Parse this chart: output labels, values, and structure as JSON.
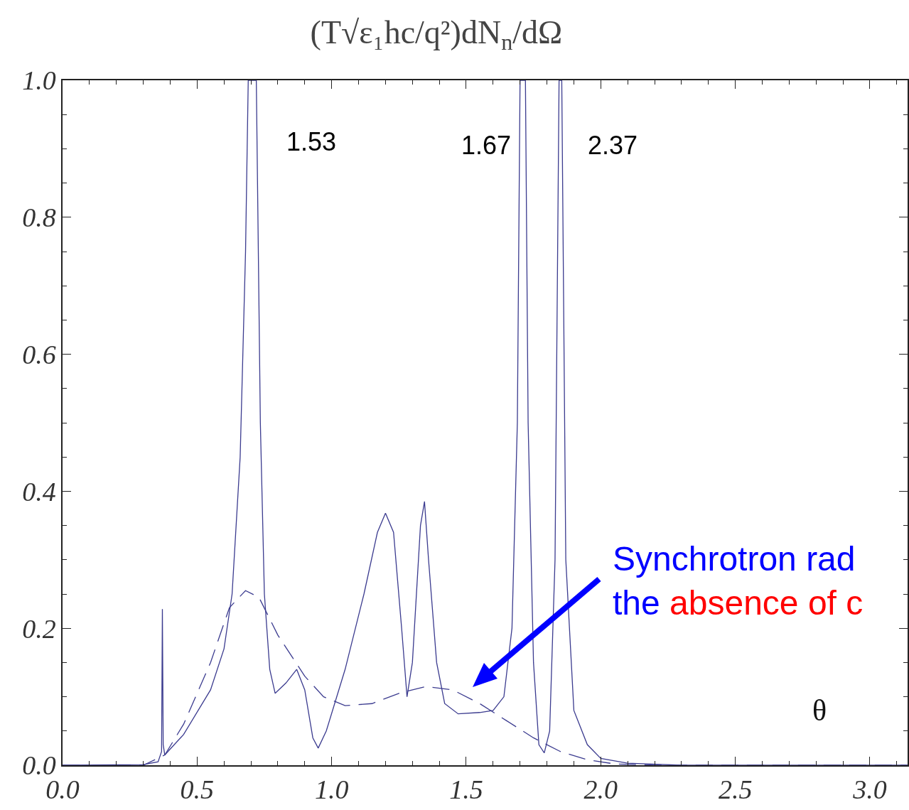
{
  "chart_data": {
    "type": "line",
    "title": "(T√ε₁hc/q²)dN$_{n}$/dΩ",
    "xlabel": "θ",
    "xlim": [
      0,
      3.14
    ],
    "ylim": [
      0,
      1
    ],
    "xticks": [
      {
        "value": 0,
        "label": "0.0"
      },
      {
        "value": 0.5,
        "label": "0.5"
      },
      {
        "value": 1,
        "label": "1.0"
      },
      {
        "value": 1.5,
        "label": "1.5"
      },
      {
        "value": 2,
        "label": "2.0"
      },
      {
        "value": 2.5,
        "label": "2.5"
      },
      {
        "value": 3,
        "label": "3.0"
      }
    ],
    "yticks": [
      {
        "value": 0,
        "label": "0.0"
      },
      {
        "value": 0.2,
        "label": "0.2"
      },
      {
        "value": 0.4,
        "label": "0.4"
      },
      {
        "value": 0.6,
        "label": "0.6"
      },
      {
        "value": 0.8,
        "label": "0.8"
      },
      {
        "value": 1,
        "label": "1.0"
      }
    ],
    "marker": "none",
    "series": [
      {
        "color": "#3b3b8f",
        "line_style": "solid",
        "x": [
          0,
          0.3,
          0.355,
          0.368,
          0.371,
          0.374,
          0.38,
          0.45,
          0.55,
          0.6,
          0.63,
          0.66,
          0.68,
          0.69,
          0.72,
          0.735,
          0.75,
          0.77,
          0.79,
          0.83,
          0.87,
          0.9,
          0.93,
          0.95,
          0.98,
          1.05,
          1.12,
          1.17,
          1.2,
          1.23,
          1.26,
          1.28,
          1.3,
          1.33,
          1.345,
          1.36,
          1.39,
          1.42,
          1.47,
          1.55,
          1.6,
          1.64,
          1.67,
          1.69,
          1.7,
          1.72,
          1.73,
          1.75,
          1.77,
          1.79,
          1.81,
          1.83,
          1.845,
          1.855,
          1.87,
          1.9,
          1.95,
          2,
          2.1,
          2.3,
          3.14
        ],
        "values": [
          0,
          0.001,
          0.005,
          0.02,
          0.228,
          0.03,
          0.015,
          0.045,
          0.11,
          0.17,
          0.25,
          0.45,
          0.75,
          1,
          1,
          0.5,
          0.25,
          0.14,
          0.105,
          0.12,
          0.14,
          0.11,
          0.04,
          0.025,
          0.05,
          0.14,
          0.25,
          0.34,
          0.368,
          0.34,
          0.2,
          0.1,
          0.15,
          0.35,
          0.385,
          0.3,
          0.15,
          0.09,
          0.075,
          0.077,
          0.08,
          0.1,
          0.2,
          0.5,
          1,
          1,
          0.5,
          0.15,
          0.03,
          0.018,
          0.05,
          0.3,
          1,
          1,
          0.3,
          0.08,
          0.03,
          0.01,
          0.003,
          0,
          0
        ]
      },
      {
        "color": "#3b3b8f",
        "line_style": "dashed",
        "x": [
          0,
          0.3,
          0.38,
          0.45,
          0.55,
          0.62,
          0.68,
          0.73,
          0.8,
          0.9,
          0.97,
          1.05,
          1.15,
          1.25,
          1.35,
          1.45,
          1.55,
          1.65,
          1.75,
          1.85,
          1.95,
          2.05,
          2.2,
          3.14
        ],
        "values": [
          0,
          0,
          0.015,
          0.06,
          0.15,
          0.23,
          0.255,
          0.245,
          0.19,
          0.13,
          0.1,
          0.087,
          0.09,
          0.105,
          0.115,
          0.11,
          0.09,
          0.065,
          0.04,
          0.02,
          0.008,
          0.002,
          0,
          0
        ]
      }
    ],
    "annotations": [
      "1.53",
      "1.67",
      "2.37",
      "Synchrotron rad\nthe absence of c"
    ]
  }
}
